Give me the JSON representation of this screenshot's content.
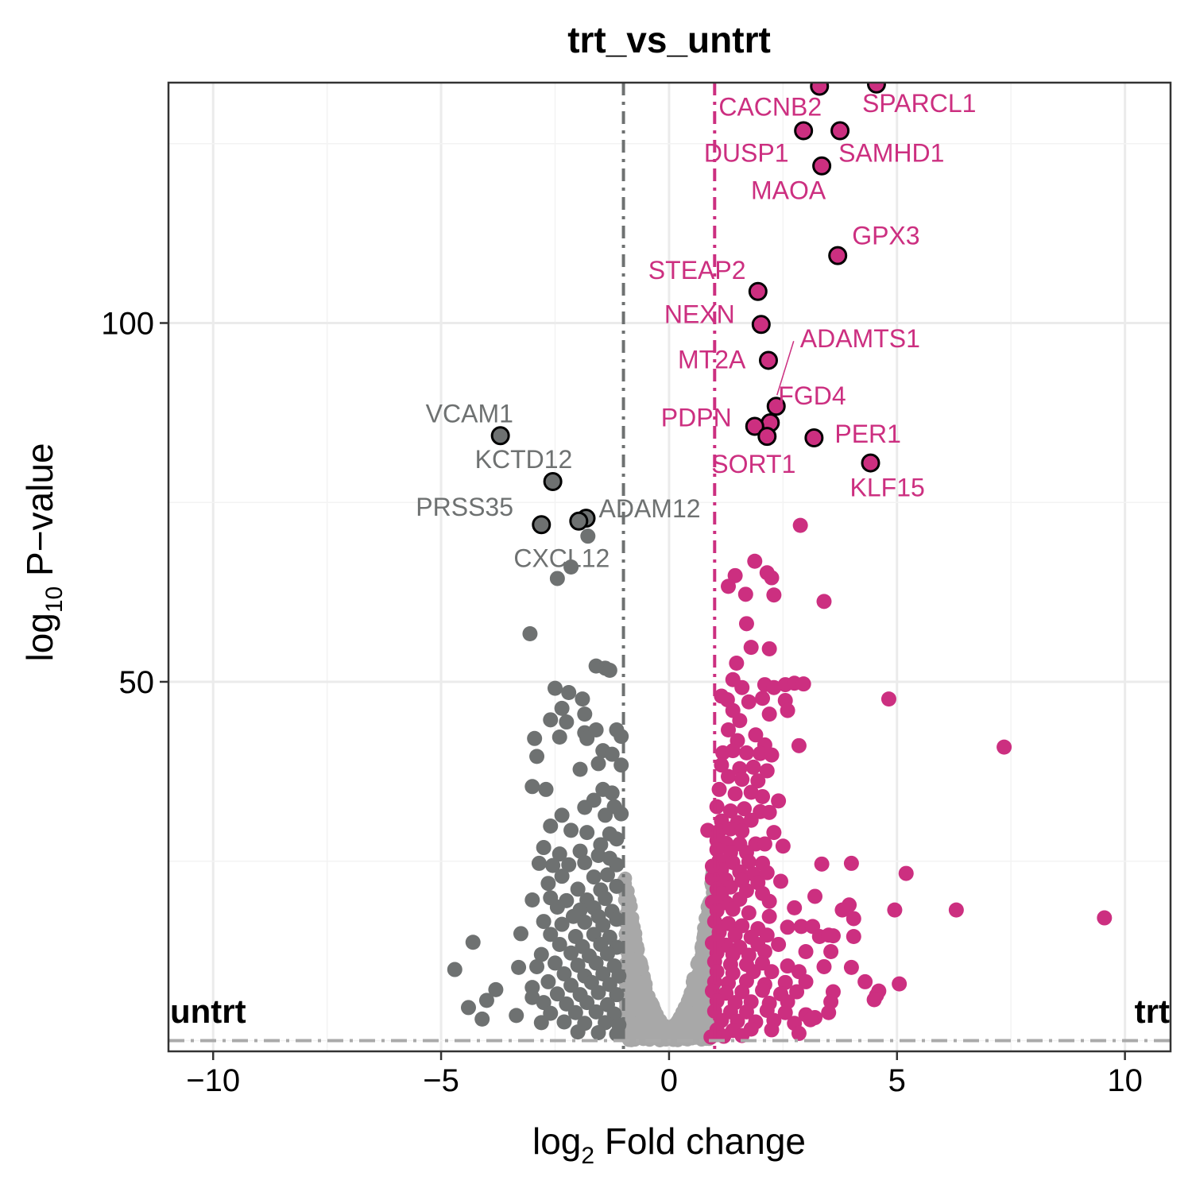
{
  "chart_data": {
    "type": "scatter",
    "title": "trt_vs_untrt",
    "xlabel": {
      "prefix": "log",
      "sub": "2",
      "suffix": " Fold change"
    },
    "ylabel": {
      "prefix": "log",
      "sub": "10",
      "suffix": " P−value"
    },
    "xlim": [
      -10.98,
      11.0
    ],
    "ylim": [
      -1.5,
      133.5
    ],
    "x_ticks": [
      -10,
      -5,
      0,
      5,
      10
    ],
    "x_tick_labels": [
      "−10",
      "−5",
      "0",
      "5",
      "10"
    ],
    "y_ticks": [
      50,
      100
    ],
    "y_tick_labels": [
      "50",
      "100"
    ],
    "grid": true,
    "thresholds": {
      "log2fc": [
        -1,
        1
      ],
      "pvalue_line": 0
    },
    "group_labels": {
      "left": "untrt",
      "right": "trt"
    },
    "colors": {
      "up": "#CC2F80",
      "down": "#6E7171",
      "ns": "#A8A8A8",
      "ns_line": "#AAAAAA"
    },
    "labeled_genes": [
      {
        "gene": "SPARCL1",
        "x": 4.55,
        "y": 133.3,
        "group": "up"
      },
      {
        "gene": "CACNB2",
        "x": 3.3,
        "y": 133.0,
        "group": "up"
      },
      {
        "gene": "DUSP1",
        "x": 2.95,
        "y": 126.8,
        "group": "up"
      },
      {
        "gene": "SAMHD1",
        "x": 3.75,
        "y": 126.8,
        "group": "up"
      },
      {
        "gene": "MAOA",
        "x": 3.35,
        "y": 121.9,
        "group": "up"
      },
      {
        "gene": "GPX3",
        "x": 3.7,
        "y": 109.4,
        "group": "up"
      },
      {
        "gene": "STEAP2",
        "x": 1.95,
        "y": 104.4,
        "group": "up"
      },
      {
        "gene": "NEXN",
        "x": 2.02,
        "y": 99.8,
        "group": "up"
      },
      {
        "gene": "MT2A",
        "x": 2.18,
        "y": 94.8,
        "group": "up"
      },
      {
        "gene": "ADAMTS1",
        "x": 2.35,
        "y": 88.4,
        "group": "up"
      },
      {
        "gene": "FGD4",
        "x": 2.22,
        "y": 86.1,
        "group": "up"
      },
      {
        "gene": "PDPN",
        "x": 1.88,
        "y": 85.6,
        "group": "up"
      },
      {
        "gene": "SORT1",
        "x": 2.15,
        "y": 84.2,
        "group": "up"
      },
      {
        "gene": "PER1",
        "x": 3.18,
        "y": 84.0,
        "group": "up"
      },
      {
        "gene": "KLF15",
        "x": 4.42,
        "y": 80.5,
        "group": "up"
      },
      {
        "gene": "VCAM1",
        "x": -3.7,
        "y": 84.3,
        "group": "down"
      },
      {
        "gene": "KCTD12",
        "x": -2.55,
        "y": 77.9,
        "group": "down"
      },
      {
        "gene": "ADAM12",
        "x": -1.82,
        "y": 72.8,
        "group": "down"
      },
      {
        "gene": "PRSS35",
        "x": -2.8,
        "y": 71.9,
        "group": "down"
      },
      {
        "gene": "CXCL12",
        "x": -1.98,
        "y": 72.4,
        "group": "down"
      }
    ],
    "up_points": [
      [
        2.88,
        71.8
      ],
      [
        1.88,
        66.8
      ],
      [
        2.15,
        65.2
      ],
      [
        1.45,
        64.8
      ],
      [
        2.25,
        64.5
      ],
      [
        1.3,
        63.3
      ],
      [
        1.68,
        62.2
      ],
      [
        2.3,
        62.1
      ],
      [
        3.4,
        61.2
      ],
      [
        1.7,
        58.1
      ],
      [
        1.8,
        54.8
      ],
      [
        2.2,
        54.6
      ],
      [
        1.48,
        52.6
      ],
      [
        1.6,
        49.2
      ],
      [
        1.4,
        50.3
      ],
      [
        2.1,
        49.6
      ],
      [
        2.3,
        49.2
      ],
      [
        2.55,
        49.6
      ],
      [
        2.75,
        49.8
      ],
      [
        2.95,
        49.7
      ],
      [
        1.15,
        48.0
      ],
      [
        1.28,
        47.5
      ],
      [
        1.75,
        47.2
      ],
      [
        2.05,
        47.7
      ],
      [
        2.55,
        47.4
      ],
      [
        4.82,
        47.6
      ],
      [
        1.4,
        46.0
      ],
      [
        2.2,
        45.5
      ],
      [
        2.6,
        46.0
      ],
      [
        1.55,
        44.6
      ],
      [
        1.3,
        43.3
      ],
      [
        1.5,
        41.8
      ],
      [
        1.9,
        42.6
      ],
      [
        2.1,
        41.2
      ],
      [
        2.85,
        41.1
      ],
      [
        7.35,
        40.9
      ],
      [
        1.18,
        40.1
      ],
      [
        1.4,
        40.4
      ],
      [
        1.7,
        40.1
      ],
      [
        2.0,
        40.0
      ],
      [
        2.25,
        39.8
      ],
      [
        1.15,
        38.4
      ],
      [
        1.55,
        37.9
      ],
      [
        1.85,
        38.1
      ],
      [
        2.15,
        37.6
      ],
      [
        1.3,
        36.8
      ],
      [
        1.6,
        36.4
      ],
      [
        1.95,
        36.2
      ],
      [
        1.1,
        35.0
      ],
      [
        1.45,
        34.4
      ],
      [
        1.8,
        34.6
      ],
      [
        2.05,
        34.0
      ],
      [
        2.4,
        33.4
      ],
      [
        1.05,
        32.6
      ],
      [
        1.35,
        32.0
      ],
      [
        1.65,
        32.3
      ],
      [
        2.0,
        31.9
      ],
      [
        2.2,
        31.8
      ],
      [
        1.15,
        30.6
      ],
      [
        1.5,
        30.4
      ],
      [
        1.8,
        30.7
      ],
      [
        0.85,
        29.3
      ],
      [
        1.1,
        29.2
      ],
      [
        1.35,
        29.5
      ],
      [
        1.6,
        29.2
      ],
      [
        2.3,
        29.0
      ],
      [
        1.05,
        27.9
      ],
      [
        1.25,
        27.5
      ],
      [
        1.55,
        27.4
      ],
      [
        1.9,
        27.4
      ],
      [
        2.1,
        27.4
      ],
      [
        2.5,
        27.1
      ],
      [
        1.05,
        26.6
      ],
      [
        1.35,
        26.2
      ],
      [
        1.7,
        26.2
      ],
      [
        1.1,
        25.1
      ],
      [
        1.4,
        24.8
      ],
      [
        1.75,
        24.9
      ],
      [
        2.05,
        24.7
      ],
      [
        3.35,
        24.6
      ],
      [
        4.0,
        24.7
      ],
      [
        1.15,
        23.8
      ],
      [
        1.55,
        23.5
      ],
      [
        1.85,
        23.2
      ],
      [
        2.15,
        23.4
      ],
      [
        5.2,
        23.3
      ],
      [
        0.95,
        22.6
      ],
      [
        1.25,
        22.4
      ],
      [
        1.6,
        22.3
      ],
      [
        1.95,
        22.0
      ],
      [
        2.45,
        22.2
      ],
      [
        1.05,
        21.1
      ],
      [
        1.35,
        21.4
      ],
      [
        1.7,
        20.9
      ],
      [
        2.05,
        20.5
      ],
      [
        3.2,
        20.1
      ],
      [
        3.95,
        18.9
      ],
      [
        0.95,
        19.3
      ],
      [
        1.25,
        19.2
      ],
      [
        1.55,
        19.7
      ],
      [
        2.2,
        19.4
      ],
      [
        2.75,
        18.5
      ],
      [
        3.8,
        18.2
      ],
      [
        4.95,
        18.2
      ],
      [
        6.3,
        18.2
      ],
      [
        1.05,
        18.1
      ],
      [
        1.4,
        18.3
      ],
      [
        1.75,
        17.8
      ],
      [
        2.2,
        17.3
      ],
      [
        4.05,
        17.0
      ],
      [
        9.55,
        17.1
      ],
      [
        1.0,
        16.6
      ],
      [
        1.3,
        16.3
      ],
      [
        1.6,
        16.0
      ],
      [
        1.95,
        15.6
      ],
      [
        2.6,
        15.8
      ],
      [
        2.9,
        15.9
      ],
      [
        3.15,
        15.9
      ],
      [
        1.1,
        15.1
      ],
      [
        1.45,
        14.7
      ],
      [
        1.8,
        14.4
      ],
      [
        2.15,
        14.7
      ],
      [
        3.3,
        14.5
      ],
      [
        3.6,
        14.6
      ],
      [
        4.05,
        14.5
      ],
      [
        0.95,
        13.6
      ],
      [
        1.25,
        13.3
      ],
      [
        1.55,
        13.0
      ],
      [
        1.95,
        13.4
      ],
      [
        2.4,
        13.4
      ],
      [
        3.5,
        14.7
      ],
      [
        1.05,
        12.2
      ],
      [
        1.4,
        12.0
      ],
      [
        1.75,
        11.9
      ],
      [
        2.1,
        12.4
      ],
      [
        3.0,
        12.4
      ],
      [
        3.55,
        12.4
      ],
      [
        1.0,
        11.0
      ],
      [
        1.35,
        10.6
      ],
      [
        1.7,
        10.6
      ],
      [
        2.05,
        10.8
      ],
      [
        2.6,
        10.4
      ],
      [
        3.4,
        10.3
      ],
      [
        4.0,
        10.2
      ],
      [
        1.05,
        9.6
      ],
      [
        1.4,
        9.4
      ],
      [
        1.85,
        9.6
      ],
      [
        2.25,
        9.6
      ],
      [
        2.85,
        9.6
      ],
      [
        1.0,
        8.2
      ],
      [
        1.3,
        8.0
      ],
      [
        1.7,
        8.3
      ],
      [
        2.1,
        7.8
      ],
      [
        2.55,
        8.1
      ],
      [
        3.0,
        8.2
      ],
      [
        4.3,
        8.2
      ],
      [
        5.05,
        7.9
      ],
      [
        0.95,
        6.9
      ],
      [
        1.25,
        6.6
      ],
      [
        1.6,
        6.8
      ],
      [
        2.05,
        7.0
      ],
      [
        2.45,
        6.5
      ],
      [
        2.8,
        6.8
      ],
      [
        4.6,
        6.9
      ],
      [
        1.05,
        5.5
      ],
      [
        1.45,
        5.3
      ],
      [
        1.8,
        5.4
      ],
      [
        2.2,
        5.2
      ],
      [
        2.6,
        5.4
      ],
      [
        3.6,
        6.8
      ],
      [
        4.55,
        6.3
      ],
      [
        1.0,
        4.1
      ],
      [
        1.35,
        4.0
      ],
      [
        1.7,
        4.0
      ],
      [
        2.15,
        4.2
      ],
      [
        2.55,
        3.9
      ],
      [
        3.0,
        3.6
      ],
      [
        3.55,
        5.4
      ],
      [
        4.5,
        5.7
      ],
      [
        1.15,
        2.8
      ],
      [
        1.5,
        2.7
      ],
      [
        1.9,
        2.6
      ],
      [
        2.3,
        2.8
      ],
      [
        2.75,
        2.4
      ],
      [
        3.5,
        3.9
      ],
      [
        3.2,
        3.2
      ],
      [
        1.05,
        1.5
      ],
      [
        1.4,
        1.4
      ],
      [
        1.8,
        1.6
      ],
      [
        2.25,
        1.5
      ],
      [
        2.85,
        1.0
      ],
      [
        3.1,
        2.9
      ],
      [
        0.92,
        0.5
      ],
      [
        1.2,
        0.6
      ],
      [
        1.6,
        0.7
      ],
      [
        0.95,
        24.3
      ],
      [
        1.15,
        20.5
      ],
      [
        1.05,
        14.0
      ]
    ],
    "down_points": [
      [
        -1.78,
        70.3
      ],
      [
        -2.45,
        64.4
      ],
      [
        -2.15,
        66.0
      ],
      [
        -3.05,
        56.7
      ],
      [
        -1.6,
        52.2
      ],
      [
        -1.4,
        51.9
      ],
      [
        -1.3,
        51.6
      ],
      [
        -2.5,
        49.1
      ],
      [
        -2.2,
        48.5
      ],
      [
        -1.9,
        47.6
      ],
      [
        -2.35,
        46.3
      ],
      [
        -1.85,
        45.5
      ],
      [
        -2.6,
        44.7
      ],
      [
        -2.25,
        44.4
      ],
      [
        -1.85,
        42.9
      ],
      [
        -1.6,
        43.3
      ],
      [
        -1.05,
        42.4
      ],
      [
        -1.15,
        43.3
      ],
      [
        -2.95,
        42.1
      ],
      [
        -2.4,
        42.3
      ],
      [
        -1.8,
        42.1
      ],
      [
        -2.9,
        39.6
      ],
      [
        -1.45,
        40.4
      ],
      [
        -1.25,
        39.9
      ],
      [
        -1.55,
        38.6
      ],
      [
        -1.05,
        38.4
      ],
      [
        -1.95,
        37.8
      ],
      [
        -3.0,
        35.4
      ],
      [
        -2.7,
        35.0
      ],
      [
        -1.45,
        35.0
      ],
      [
        -1.25,
        34.5
      ],
      [
        -1.65,
        33.5
      ],
      [
        -1.85,
        32.5
      ],
      [
        -1.2,
        32.6
      ],
      [
        -1.4,
        31.4
      ],
      [
        -2.35,
        31.4
      ],
      [
        -1.05,
        31.6
      ],
      [
        -2.6,
        29.9
      ],
      [
        -2.15,
        29.3
      ],
      [
        -1.8,
        29.0
      ],
      [
        -1.3,
        28.8
      ],
      [
        -1.15,
        28.1
      ],
      [
        -1.5,
        27.3
      ],
      [
        -2.75,
        26.9
      ],
      [
        -2.4,
        26.0
      ],
      [
        -1.95,
        26.4
      ],
      [
        -1.55,
        25.8
      ],
      [
        -1.3,
        25.4
      ],
      [
        -2.85,
        24.7
      ],
      [
        -2.55,
        24.4
      ],
      [
        -2.2,
        24.5
      ],
      [
        -1.85,
        24.8
      ],
      [
        -1.15,
        24.5
      ],
      [
        -2.35,
        22.9
      ],
      [
        -1.65,
        22.8
      ],
      [
        -1.35,
        23.1
      ],
      [
        -2.65,
        21.9
      ],
      [
        -2.0,
        21.1
      ],
      [
        -1.5,
        21.0
      ],
      [
        -1.15,
        21.5
      ],
      [
        -3.0,
        19.6
      ],
      [
        -2.6,
        19.9
      ],
      [
        -2.25,
        19.5
      ],
      [
        -1.8,
        19.6
      ],
      [
        -1.4,
        19.8
      ],
      [
        -2.45,
        18.6
      ],
      [
        -1.95,
        18.2
      ],
      [
        -1.65,
        18.5
      ],
      [
        -1.25,
        18.0
      ],
      [
        -2.1,
        17.3
      ],
      [
        -1.55,
        17.3
      ],
      [
        -1.15,
        16.9
      ],
      [
        -2.75,
        16.6
      ],
      [
        -2.35,
        16.2
      ],
      [
        -1.85,
        16.5
      ],
      [
        -1.45,
        16.1
      ],
      [
        -3.25,
        14.9
      ],
      [
        -2.6,
        14.8
      ],
      [
        -2.05,
        14.5
      ],
      [
        -1.65,
        14.8
      ],
      [
        -1.3,
        14.4
      ],
      [
        -2.4,
        13.4
      ],
      [
        -1.9,
        13.1
      ],
      [
        -1.5,
        13.4
      ],
      [
        -1.15,
        13.0
      ],
      [
        -4.3,
        13.7
      ],
      [
        -2.8,
        12.0
      ],
      [
        -2.15,
        12.2
      ],
      [
        -1.75,
        11.8
      ],
      [
        -1.35,
        12.1
      ],
      [
        -2.5,
        10.8
      ],
      [
        -2.0,
        10.5
      ],
      [
        -1.6,
        10.8
      ],
      [
        -1.2,
        10.4
      ],
      [
        -3.3,
        10.2
      ],
      [
        -2.9,
        10.3
      ],
      [
        -4.7,
        9.9
      ],
      [
        -2.3,
        9.3
      ],
      [
        -1.85,
        9.0
      ],
      [
        -1.45,
        9.3
      ],
      [
        -1.1,
        9.0
      ],
      [
        -2.65,
        8.2
      ],
      [
        -2.15,
        7.7
      ],
      [
        -1.7,
        8.1
      ],
      [
        -1.3,
        7.8
      ],
      [
        -3.0,
        7.4
      ],
      [
        -3.8,
        7.1
      ],
      [
        -2.45,
        6.5
      ],
      [
        -1.95,
        6.4
      ],
      [
        -1.55,
        6.7
      ],
      [
        -1.15,
        6.4
      ],
      [
        -4.0,
        5.6
      ],
      [
        -3.0,
        6.0
      ],
      [
        -2.75,
        5.3
      ],
      [
        -2.25,
        5.1
      ],
      [
        -1.8,
        5.3
      ],
      [
        -1.35,
        5.0
      ],
      [
        -4.4,
        4.6
      ],
      [
        -2.6,
        3.8
      ],
      [
        -2.05,
        3.9
      ],
      [
        -1.6,
        4.0
      ],
      [
        -1.2,
        3.7
      ],
      [
        -3.35,
        3.5
      ],
      [
        -4.1,
        3.0
      ],
      [
        -2.3,
        2.6
      ],
      [
        -1.85,
        2.4
      ],
      [
        -1.4,
        2.5
      ],
      [
        -1.1,
        2.2
      ],
      [
        -2.0,
        1.2
      ],
      [
        -1.55,
        1.1
      ],
      [
        -1.15,
        0.9
      ],
      [
        -2.8,
        2.5
      ]
    ]
  }
}
